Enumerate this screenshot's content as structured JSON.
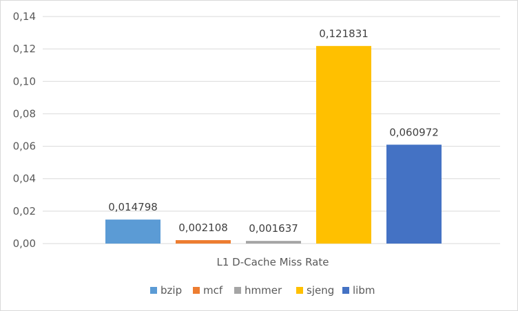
{
  "chart_data": {
    "type": "bar",
    "title": "",
    "xlabel": "",
    "ylabel": "",
    "categories": [
      "L1 D-Cache Miss Rate"
    ],
    "series": [
      {
        "name": "bzip",
        "values": [
          0.014798
        ],
        "label": "0,014798",
        "color": "#5b9bd5"
      },
      {
        "name": "mcf",
        "values": [
          0.002108
        ],
        "label": "0,002108",
        "color": "#ed7d31"
      },
      {
        "name": "hmmer",
        "values": [
          0.001637
        ],
        "label": "0,001637",
        "color": "#a5a5a5"
      },
      {
        "name": "sjeng",
        "values": [
          0.121831
        ],
        "label": "0,121831",
        "color": "#ffc000"
      },
      {
        "name": "libm",
        "values": [
          0.060972
        ],
        "label": "0,060972",
        "color": "#4472c4"
      }
    ],
    "ylim": [
      0,
      0.14
    ],
    "yticks": [
      {
        "value": 0.0,
        "label": "0,00"
      },
      {
        "value": 0.02,
        "label": "0,02"
      },
      {
        "value": 0.04,
        "label": "0,04"
      },
      {
        "value": 0.06,
        "label": "0,06"
      },
      {
        "value": 0.08,
        "label": "0,08"
      },
      {
        "value": 0.1,
        "label": "0,10"
      },
      {
        "value": 0.12,
        "label": "0,12"
      },
      {
        "value": 0.14,
        "label": "0,14"
      }
    ],
    "grid": true,
    "legend": "bottom",
    "gridline_color": "#d9d9d9"
  }
}
